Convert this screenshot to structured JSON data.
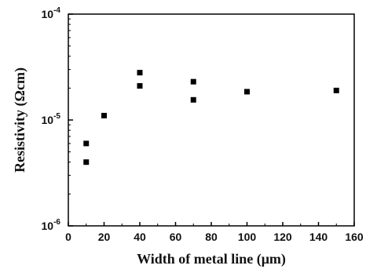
{
  "chart_data": {
    "type": "scatter",
    "xlabel": "Width of metal line (μm)",
    "ylabel": "Resistivity (Ωcm)",
    "xlim": [
      0,
      160
    ],
    "ylim": [
      1e-06,
      0.0001
    ],
    "y_scale": "log",
    "x_ticks": [
      0,
      20,
      40,
      60,
      80,
      100,
      120,
      140,
      160
    ],
    "x_tick_labels": [
      "0",
      "20",
      "40",
      "60",
      "80",
      "100",
      "120",
      "140",
      "160"
    ],
    "y_ticks": [
      1e-06,
      1e-05,
      0.0001
    ],
    "y_tick_labels": [
      {
        "base": "10",
        "exp": "-6"
      },
      {
        "base": "10",
        "exp": "-5"
      },
      {
        "base": "10",
        "exp": "-4"
      }
    ],
    "grid": false,
    "legend": "none",
    "marker": "square",
    "marker_color": "#000000",
    "points": [
      {
        "x": 10,
        "y": 6e-06
      },
      {
        "x": 10,
        "y": 4e-06
      },
      {
        "x": 20,
        "y": 1.1e-05
      },
      {
        "x": 40,
        "y": 2.8e-05
      },
      {
        "x": 40,
        "y": 2.1e-05
      },
      {
        "x": 70,
        "y": 2.3e-05
      },
      {
        "x": 70,
        "y": 1.55e-05
      },
      {
        "x": 100,
        "y": 1.85e-05
      },
      {
        "x": 150,
        "y": 1.9e-05
      }
    ]
  }
}
